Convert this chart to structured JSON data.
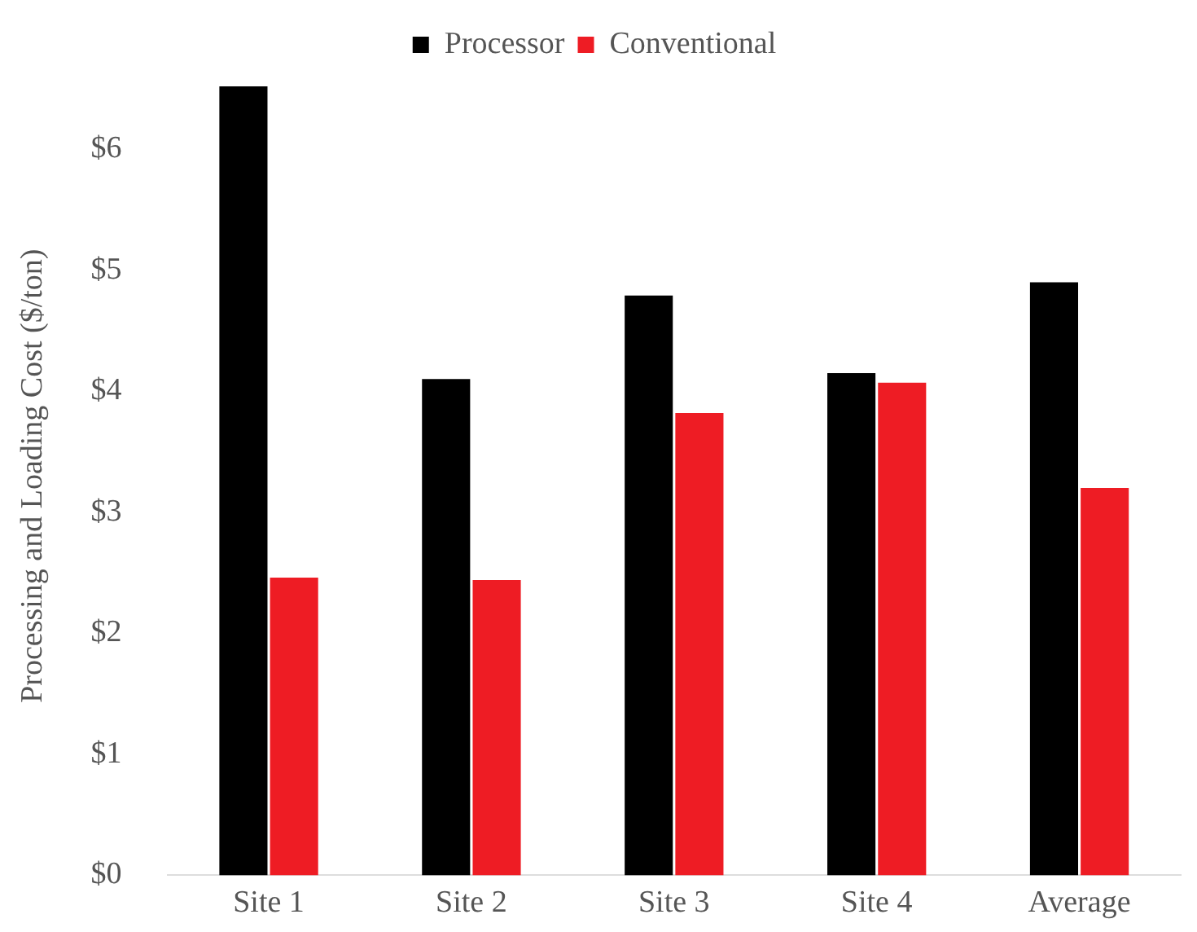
{
  "chart_data": {
    "type": "bar",
    "ylabel": "Processing and Loading Cost ($/ton)",
    "categories": [
      "Site 1",
      "Site 2",
      "Site 3",
      "Site 4",
      "Average"
    ],
    "series": [
      {
        "name": "Processor",
        "color": "#000000",
        "values": [
          6.52,
          4.1,
          4.79,
          4.15,
          4.9
        ]
      },
      {
        "name": "Conventional",
        "color": "#ee1c24",
        "values": [
          2.46,
          2.44,
          3.82,
          4.07,
          3.2
        ]
      }
    ],
    "ylim": [
      0,
      6.6
    ],
    "yticks": [
      {
        "value": 0,
        "label": "$0"
      },
      {
        "value": 1,
        "label": "$1"
      },
      {
        "value": 2,
        "label": "$2"
      },
      {
        "value": 3,
        "label": "$3"
      },
      {
        "value": 4,
        "label": "$4"
      },
      {
        "value": 5,
        "label": "$5"
      },
      {
        "value": 6,
        "label": "$6"
      }
    ],
    "grid": false,
    "legend": "top"
  }
}
